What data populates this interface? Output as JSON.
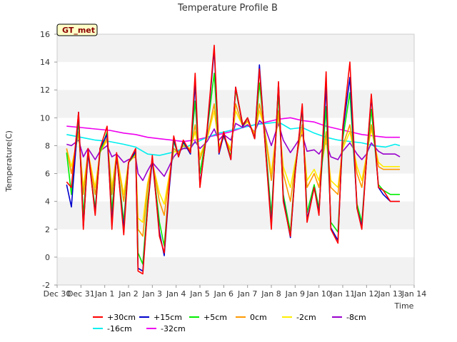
{
  "chart_data": {
    "type": "line",
    "title": "Temperature Profile B",
    "xlabel": "Time",
    "ylabel": "Temperature(C)",
    "badge": "GT_met",
    "xlim": [
      0,
      15
    ],
    "ylim": [
      -2,
      16
    ],
    "x_ticks": [
      {
        "t": 0,
        "label": "Dec 30"
      },
      {
        "t": 1,
        "label": "Dec 31"
      },
      {
        "t": 2,
        "label": "Jan 1"
      },
      {
        "t": 3,
        "label": "Jan 2"
      },
      {
        "t": 4,
        "label": "Jan 3"
      },
      {
        "t": 5,
        "label": "Jan 4"
      },
      {
        "t": 6,
        "label": "Jan 5"
      },
      {
        "t": 7,
        "label": "Jan 6"
      },
      {
        "t": 8,
        "label": "Jan 7"
      },
      {
        "t": 9,
        "label": "Jan 8"
      },
      {
        "t": 10,
        "label": "Jan 9"
      },
      {
        "t": 11,
        "label": "Jan 10"
      },
      {
        "t": 12,
        "label": "Jan 11"
      },
      {
        "t": 13,
        "label": "Jan 12"
      },
      {
        "t": 14,
        "label": "Jan 13"
      },
      {
        "t": 15,
        "label": "Jan 14"
      }
    ],
    "y_ticks": [
      -2,
      0,
      2,
      4,
      6,
      8,
      10,
      12,
      14,
      16
    ],
    "series": [
      {
        "name": "+30cm",
        "color": "#ff0000",
        "x": [
          0.4,
          0.6,
          0.9,
          1.1,
          1.3,
          1.6,
          1.8,
          2.1,
          2.3,
          2.5,
          2.8,
          3.0,
          3.3,
          3.4,
          3.6,
          3.8,
          4.0,
          4.3,
          4.5,
          4.7,
          4.9,
          5.1,
          5.3,
          5.6,
          5.8,
          6.0,
          6.3,
          6.6,
          6.8,
          7.0,
          7.3,
          7.5,
          7.8,
          8.0,
          8.3,
          8.5,
          8.7,
          9.0,
          9.3,
          9.5,
          9.8,
          10.0,
          10.3,
          10.5,
          10.8,
          11.0,
          11.3,
          11.5,
          11.8,
          12.0,
          12.3,
          12.6,
          12.8,
          13.0,
          13.2,
          13.5,
          13.7,
          14.0,
          14.2,
          14.4
        ],
        "values": [
          5.4,
          5.0,
          10.4,
          2.0,
          7.8,
          3.0,
          7.8,
          9.4,
          2.0,
          7.5,
          1.6,
          6.8,
          7.8,
          -1.0,
          -1.2,
          3.5,
          7.3,
          1.5,
          0.3,
          5.0,
          8.7,
          7.2,
          8.4,
          7.5,
          13.2,
          5.0,
          9.2,
          15.2,
          7.5,
          9.0,
          7.0,
          12.2,
          9.5,
          10.0,
          8.5,
          13.5,
          9.0,
          2.0,
          12.6,
          4.0,
          1.5,
          6.0,
          11.0,
          2.5,
          5.0,
          3.0,
          13.3,
          2.0,
          1.0,
          9.3,
          14.0,
          3.5,
          2.0,
          7.0,
          11.7,
          5.0,
          4.8,
          4.0,
          4.0,
          4.0
        ]
      },
      {
        "name": "+15cm",
        "color": "#0000cc",
        "x": [
          0.4,
          0.6,
          0.9,
          1.1,
          1.3,
          1.6,
          1.8,
          2.1,
          2.3,
          2.5,
          2.8,
          3.0,
          3.3,
          3.4,
          3.6,
          3.8,
          4.0,
          4.3,
          4.5,
          4.7,
          4.9,
          5.1,
          5.3,
          5.6,
          5.8,
          6.0,
          6.3,
          6.6,
          6.8,
          7.0,
          7.3,
          7.5,
          7.8,
          8.0,
          8.3,
          8.5,
          8.7,
          9.0,
          9.3,
          9.5,
          9.8,
          10.0,
          10.3,
          10.5,
          10.8,
          11.0,
          11.3,
          11.5,
          11.8,
          12.0,
          12.3,
          12.6,
          12.8,
          13.0,
          13.2,
          13.5,
          13.7,
          14.0,
          14.2,
          14.4
        ],
        "values": [
          5.2,
          3.6,
          10.4,
          2.2,
          7.5,
          3.2,
          7.8,
          8.8,
          2.5,
          7.3,
          2.0,
          6.8,
          7.6,
          -0.8,
          -1.0,
          3.5,
          7.0,
          1.8,
          0.1,
          4.7,
          8.5,
          7.2,
          8.3,
          7.4,
          12.5,
          5.2,
          9.0,
          14.9,
          7.4,
          8.8,
          7.0,
          12.2,
          9.4,
          10.0,
          8.5,
          13.8,
          9.0,
          2.3,
          12.5,
          4.2,
          1.4,
          6.0,
          10.8,
          2.7,
          5.0,
          3.2,
          12.3,
          2.1,
          1.2,
          9.0,
          12.9,
          3.5,
          2.2,
          7.0,
          11.5,
          5.0,
          4.5,
          4.0,
          4.0,
          4.0
        ]
      },
      {
        "name": "+5cm",
        "color": "#00ee00",
        "x": [
          0.4,
          0.6,
          0.9,
          1.1,
          1.3,
          1.6,
          1.8,
          2.1,
          2.3,
          2.5,
          2.8,
          3.0,
          3.3,
          3.4,
          3.6,
          3.8,
          4.0,
          4.3,
          4.5,
          4.7,
          4.9,
          5.1,
          5.3,
          5.6,
          5.8,
          6.0,
          6.3,
          6.6,
          6.8,
          7.0,
          7.3,
          7.5,
          7.8,
          8.0,
          8.3,
          8.5,
          8.7,
          9.0,
          9.3,
          9.5,
          9.8,
          10.0,
          10.3,
          10.5,
          10.8,
          11.0,
          11.3,
          11.5,
          11.8,
          12.0,
          12.3,
          12.6,
          12.8,
          13.0,
          13.2,
          13.5,
          13.7,
          14.0,
          14.2,
          14.4
        ],
        "values": [
          7.5,
          4.5,
          9.8,
          3.0,
          7.5,
          3.5,
          7.5,
          9.0,
          3.3,
          7.3,
          2.5,
          6.8,
          7.5,
          0.3,
          -0.5,
          4.0,
          7.0,
          2.5,
          0.8,
          5.0,
          8.3,
          7.3,
          8.2,
          7.5,
          11.2,
          6.0,
          9.0,
          13.2,
          7.5,
          8.8,
          7.2,
          12.0,
          9.5,
          10.0,
          8.5,
          12.5,
          9.2,
          3.0,
          11.8,
          4.5,
          1.8,
          6.2,
          10.6,
          3.2,
          5.2,
          3.5,
          10.8,
          2.5,
          1.8,
          8.5,
          11.8,
          3.8,
          2.5,
          7.0,
          10.6,
          5.2,
          4.8,
          4.5,
          4.5,
          4.5
        ]
      },
      {
        "name": "0cm",
        "color": "#ff9900",
        "x": [
          0.4,
          0.6,
          0.9,
          1.1,
          1.3,
          1.6,
          1.8,
          2.1,
          2.3,
          2.5,
          2.8,
          3.0,
          3.3,
          3.4,
          3.6,
          3.8,
          4.0,
          4.3,
          4.5,
          4.7,
          4.9,
          5.1,
          5.3,
          5.6,
          5.8,
          6.0,
          6.3,
          6.6,
          6.8,
          7.0,
          7.3,
          7.5,
          7.8,
          8.0,
          8.3,
          8.5,
          8.7,
          9.0,
          9.3,
          9.5,
          9.8,
          10.0,
          10.3,
          10.5,
          10.8,
          11.0,
          11.3,
          11.5,
          11.8,
          12.0,
          12.3,
          12.6,
          12.8,
          13.0,
          13.2,
          13.5,
          13.7,
          14.0,
          14.2,
          14.4
        ],
        "values": [
          7.8,
          6.0,
          9.0,
          4.5,
          7.5,
          4.5,
          7.5,
          8.6,
          4.5,
          7.4,
          4.0,
          6.8,
          7.4,
          2.0,
          1.5,
          5.0,
          6.9,
          4.0,
          3.0,
          5.6,
          7.8,
          7.5,
          8.0,
          7.7,
          9.5,
          7.0,
          8.6,
          11.0,
          7.8,
          8.6,
          7.6,
          11.0,
          9.4,
          9.8,
          8.8,
          11.0,
          9.4,
          5.5,
          10.5,
          6.0,
          4.0,
          6.5,
          9.5,
          5.0,
          6.0,
          5.0,
          9.0,
          5.0,
          4.5,
          8.0,
          9.5,
          6.0,
          5.0,
          7.2,
          9.5,
          6.5,
          6.3,
          6.3,
          6.3,
          6.3
        ]
      },
      {
        "name": "-2cm",
        "color": "#ffee00",
        "x": [
          0.4,
          0.6,
          0.9,
          1.1,
          1.3,
          1.6,
          1.8,
          2.1,
          2.3,
          2.5,
          2.8,
          3.0,
          3.3,
          3.4,
          3.6,
          3.8,
          4.0,
          4.3,
          4.5,
          4.7,
          4.9,
          5.1,
          5.3,
          5.6,
          5.8,
          6.0,
          6.3,
          6.6,
          6.8,
          7.0,
          7.3,
          7.5,
          7.8,
          8.0,
          8.3,
          8.5,
          8.7,
          9.0,
          9.3,
          9.5,
          9.8,
          10.0,
          10.3,
          10.5,
          10.8,
          11.0,
          11.3,
          11.5,
          11.8,
          12.0,
          12.3,
          12.6,
          12.8,
          13.0,
          13.2,
          13.5,
          13.7,
          14.0,
          14.2,
          14.4
        ],
        "values": [
          7.8,
          6.5,
          8.8,
          5.0,
          7.5,
          5.0,
          7.5,
          8.4,
          5.0,
          7.4,
          4.5,
          6.8,
          7.3,
          2.8,
          2.5,
          5.3,
          6.8,
          4.6,
          3.8,
          5.8,
          7.6,
          7.5,
          8.0,
          7.8,
          9.0,
          7.3,
          8.5,
          10.5,
          8.0,
          8.6,
          7.8,
          10.5,
          9.4,
          9.7,
          8.9,
          10.5,
          9.4,
          6.0,
          10.2,
          6.5,
          5.0,
          6.8,
          9.2,
          5.5,
          6.3,
          5.5,
          8.5,
          5.5,
          5.0,
          7.8,
          9.0,
          6.5,
          5.5,
          7.3,
          9.2,
          6.8,
          6.5,
          6.5,
          6.5,
          6.5
        ]
      },
      {
        "name": "-8cm",
        "color": "#9900cc",
        "x": [
          0.4,
          0.6,
          0.9,
          1.1,
          1.3,
          1.6,
          1.8,
          2.1,
          2.3,
          2.5,
          2.8,
          3.0,
          3.3,
          3.4,
          3.6,
          3.8,
          4.0,
          4.3,
          4.5,
          4.7,
          4.9,
          5.1,
          5.3,
          5.6,
          5.8,
          6.0,
          6.3,
          6.6,
          6.8,
          7.0,
          7.3,
          7.5,
          7.8,
          8.0,
          8.3,
          8.5,
          8.7,
          9.0,
          9.3,
          9.5,
          9.8,
          10.0,
          10.3,
          10.5,
          10.8,
          11.0,
          11.3,
          11.5,
          11.8,
          12.0,
          12.3,
          12.6,
          12.8,
          13.0,
          13.2,
          13.5,
          13.7,
          14.0,
          14.2,
          14.4
        ],
        "values": [
          8.1,
          8.0,
          8.4,
          7.2,
          7.8,
          7.0,
          7.6,
          8.0,
          7.2,
          7.4,
          6.8,
          7.0,
          7.2,
          6.0,
          5.5,
          6.2,
          6.8,
          6.2,
          5.8,
          6.5,
          7.2,
          7.6,
          7.8,
          7.8,
          8.3,
          7.8,
          8.3,
          9.2,
          8.4,
          8.8,
          8.4,
          9.6,
          9.3,
          9.5,
          9.0,
          9.8,
          9.5,
          8.0,
          9.6,
          8.4,
          7.5,
          8.0,
          8.8,
          7.6,
          7.7,
          7.4,
          8.2,
          7.2,
          7.0,
          7.6,
          8.2,
          7.4,
          7.0,
          7.4,
          8.2,
          7.6,
          7.4,
          7.4,
          7.4,
          7.2
        ]
      },
      {
        "name": "-16cm",
        "color": "#00eeee",
        "x": [
          0.4,
          1.0,
          1.6,
          2.2,
          2.8,
          3.3,
          3.8,
          4.3,
          4.8,
          5.3,
          5.8,
          6.3,
          6.8,
          7.3,
          7.8,
          8.3,
          8.8,
          9.3,
          9.8,
          10.3,
          10.8,
          11.3,
          11.8,
          12.3,
          12.8,
          13.3,
          13.8,
          14.2,
          14.4
        ],
        "values": [
          8.8,
          8.6,
          8.4,
          8.3,
          8.1,
          7.9,
          7.4,
          7.3,
          7.5,
          7.8,
          8.2,
          8.6,
          8.9,
          9.1,
          9.3,
          9.5,
          9.6,
          9.7,
          9.2,
          9.3,
          8.9,
          8.6,
          8.4,
          8.3,
          8.2,
          8.0,
          7.9,
          8.1,
          8.0
        ]
      },
      {
        "name": "-32cm",
        "color": "#ee00ee",
        "x": [
          0.4,
          1.0,
          1.6,
          2.2,
          2.8,
          3.3,
          3.8,
          4.3,
          4.8,
          5.3,
          5.8,
          6.3,
          6.8,
          7.3,
          7.8,
          8.3,
          8.8,
          9.3,
          9.8,
          10.3,
          10.8,
          11.3,
          11.8,
          12.3,
          12.8,
          13.3,
          13.8,
          14.2,
          14.4
        ],
        "values": [
          9.4,
          9.3,
          9.2,
          9.1,
          8.9,
          8.8,
          8.6,
          8.5,
          8.4,
          8.3,
          8.4,
          8.6,
          8.8,
          9.0,
          9.3,
          9.5,
          9.7,
          9.9,
          10.0,
          9.8,
          9.7,
          9.4,
          9.2,
          9.0,
          8.8,
          8.7,
          8.6,
          8.6,
          8.6
        ]
      }
    ]
  }
}
